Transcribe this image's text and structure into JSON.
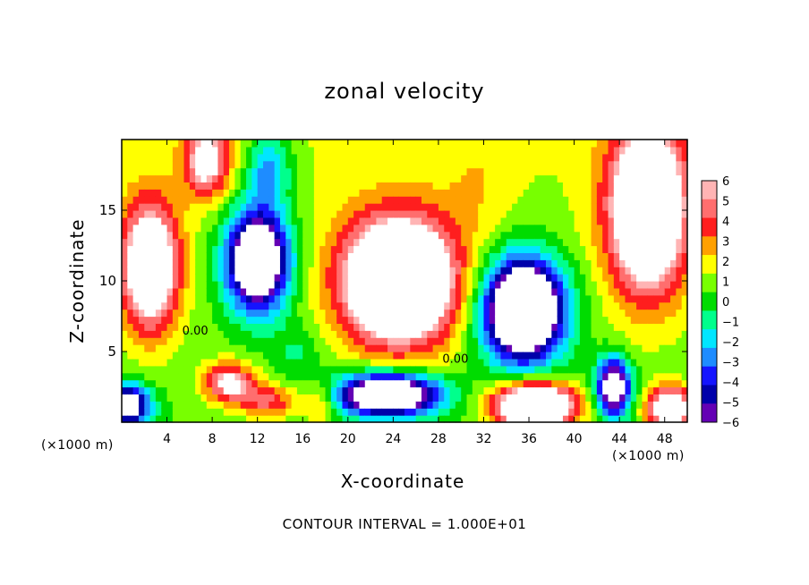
{
  "chart_data": {
    "type": "heatmap",
    "title": "zonal velocity",
    "xlabel": "X-coordinate",
    "ylabel": "Z-coordinate",
    "x_unit_left": "(×1000 m)",
    "x_unit_right": "(×1000 m)",
    "footer": "CONTOUR INTERVAL = 1.000E+01",
    "xlim": [
      0,
      50
    ],
    "ylim": [
      0,
      20
    ],
    "x_ticks": [
      "4",
      "8",
      "12",
      "16",
      "20",
      "24",
      "28",
      "32",
      "36",
      "40",
      "44",
      "48"
    ],
    "x_tick_values": [
      4,
      8,
      12,
      16,
      20,
      24,
      28,
      32,
      36,
      40,
      44,
      48
    ],
    "y_ticks": [
      "5",
      "10",
      "15"
    ],
    "y_tick_values": [
      5,
      10,
      15
    ],
    "contour_labels": [
      {
        "text": "0.00",
        "x": 6.5,
        "z": 6.2
      },
      {
        "text": "0.00",
        "x": 29.5,
        "z": 4.2
      }
    ],
    "colorbar": {
      "labels": [
        "6",
        "5",
        "4",
        "3",
        "2",
        "1",
        "0",
        "−1",
        "−2",
        "−3",
        "−4",
        "−5",
        "−6"
      ],
      "values": [
        6,
        5,
        4,
        3,
        2,
        1,
        0,
        -1,
        -2,
        -3,
        -4,
        -5,
        -6
      ],
      "colors": [
        "#ffb4b4",
        "#ff6e6e",
        "#ff1e1e",
        "#ffa000",
        "#ffff00",
        "#78ff00",
        "#00dc00",
        "#00ff8c",
        "#00e6ff",
        "#1e8cff",
        "#1414ff",
        "#0000aa",
        "#6400b4"
      ],
      "out_of_range_color": "#ffffff"
    },
    "field_features": [
      {
        "x": 2.5,
        "z": 11,
        "sx": 2.5,
        "sz": 4.5,
        "amp": 9
      },
      {
        "x": 0.5,
        "z": 1.2,
        "sx": 2.0,
        "sz": 1.5,
        "amp": -9
      },
      {
        "x": 7.5,
        "z": 18.5,
        "sx": 2.0,
        "sz": 2.5,
        "amp": 6
      },
      {
        "x": 12,
        "z": 11.5,
        "sx": 2.8,
        "sz": 3.6,
        "amp": -12
      },
      {
        "x": 13,
        "z": 18,
        "sx": 2.0,
        "sz": 2.5,
        "amp": -4
      },
      {
        "x": 9.5,
        "z": 2.8,
        "sx": 2.2,
        "sz": 1.4,
        "amp": 6
      },
      {
        "x": 13,
        "z": 1.5,
        "sx": 2.5,
        "sz": 1.2,
        "amp": 4
      },
      {
        "x": 15.5,
        "z": 5,
        "sx": 2.0,
        "sz": 2.0,
        "amp": -1.5
      },
      {
        "x": 24.5,
        "z": 10,
        "sx": 5.0,
        "sz": 4.5,
        "amp": 12
      },
      {
        "x": 23.5,
        "z": 2,
        "sx": 4.5,
        "sz": 1.5,
        "amp": -12
      },
      {
        "x": 17.5,
        "z": 1.5,
        "sx": 1.5,
        "sz": 1.5,
        "amp": 3
      },
      {
        "x": 35.5,
        "z": 8,
        "sx": 3.5,
        "sz": 3.6,
        "amp": -14
      },
      {
        "x": 36.5,
        "z": 1.2,
        "sx": 3.5,
        "sz": 1.6,
        "amp": 12
      },
      {
        "x": 31.5,
        "z": 17,
        "sx": 3.0,
        "sz": 4.0,
        "amp": 1
      },
      {
        "x": 46.5,
        "z": 15,
        "sx": 3.5,
        "sz": 6.0,
        "amp": 10
      },
      {
        "x": 43.5,
        "z": 2.5,
        "sx": 1.5,
        "sz": 2.0,
        "amp": -10
      },
      {
        "x": 48.5,
        "z": 1.0,
        "sx": 2.0,
        "sz": 1.5,
        "amp": 9
      }
    ]
  }
}
